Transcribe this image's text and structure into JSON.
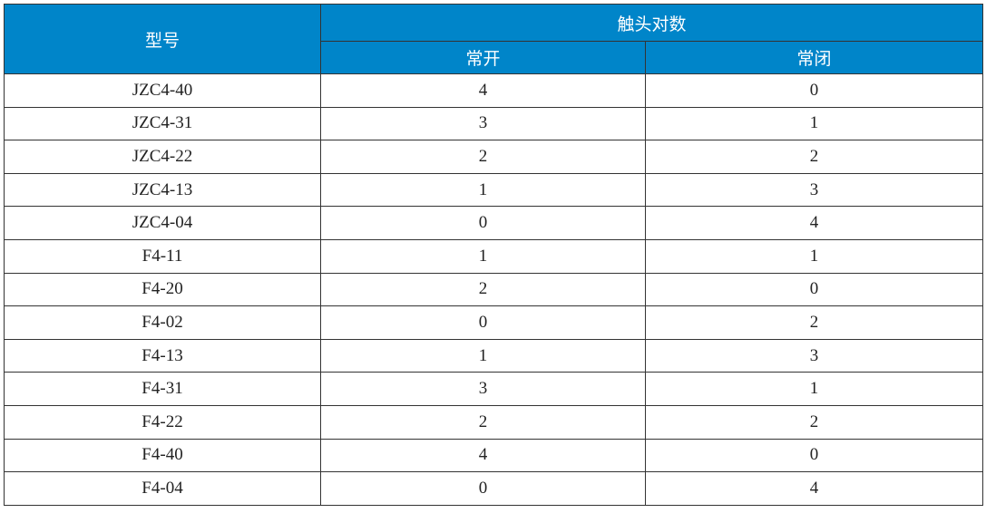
{
  "header": {
    "model": "型号",
    "contacts": "触头对数",
    "no": "常开",
    "nc": "常闭"
  },
  "colors": {
    "header_bg": "#0085c9"
  },
  "rows": [
    [
      "JZC4-40",
      "4",
      "0"
    ],
    [
      "JZC4-31",
      "3",
      "1"
    ],
    [
      "JZC4-22",
      "2",
      "2"
    ],
    [
      "JZC4-13",
      "1",
      "3"
    ],
    [
      "JZC4-04",
      "0",
      "4"
    ],
    [
      "F4-11",
      "1",
      "1"
    ],
    [
      "F4-20",
      "2",
      "0"
    ],
    [
      "F4-02",
      "0",
      "2"
    ],
    [
      "F4-13",
      "1",
      "3"
    ],
    [
      "F4-31",
      "3",
      "1"
    ],
    [
      "F4-22",
      "2",
      "2"
    ],
    [
      "F4-40",
      "4",
      "0"
    ],
    [
      "F4-04",
      "0",
      "4"
    ]
  ]
}
